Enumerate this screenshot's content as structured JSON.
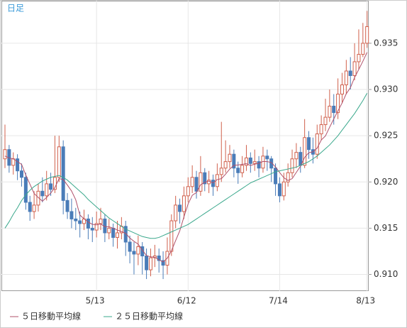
{
  "chart_data": {
    "type": "candlestick",
    "title": "日足",
    "categories": [
      null,
      null,
      null,
      null,
      null,
      null,
      null,
      null,
      null,
      null,
      null,
      null,
      null,
      null,
      null,
      null,
      null,
      null,
      null,
      null,
      null,
      null,
      "5/13",
      null,
      null,
      null,
      null,
      null,
      null,
      null,
      null,
      null,
      null,
      null,
      null,
      null,
      null,
      null,
      null,
      null,
      null,
      null,
      null,
      null,
      "6/12",
      null,
      null,
      null,
      null,
      null,
      null,
      null,
      null,
      null,
      null,
      null,
      null,
      null,
      null,
      null,
      null,
      null,
      null,
      null,
      null,
      null,
      "7/14",
      null,
      null,
      null,
      null,
      null,
      null,
      null,
      null,
      null,
      null,
      null,
      null,
      null,
      null,
      null,
      null,
      null,
      null,
      null,
      null,
      "8/13"
    ],
    "candles": {
      "open": [
        0.9225,
        0.9235,
        0.9218,
        0.9225,
        0.9212,
        0.9205,
        0.9178,
        0.9168,
        0.9175,
        0.919,
        0.9185,
        0.9198,
        0.9192,
        0.9205,
        0.9238,
        0.918,
        0.9168,
        0.916,
        0.9158,
        0.9155,
        0.916,
        0.915,
        0.9148,
        0.9155,
        0.916,
        0.9145,
        0.915,
        0.914,
        0.9145,
        0.9152,
        0.9135,
        0.9125,
        0.9122,
        0.913,
        0.912,
        0.9105,
        0.9118,
        0.912,
        0.9115,
        0.911,
        0.9125,
        0.9158,
        0.9175,
        0.9168,
        0.9185,
        0.9195,
        0.9205,
        0.919,
        0.921,
        0.9198,
        0.9202,
        0.9195,
        0.9208,
        0.9215,
        0.9222,
        0.923,
        0.9215,
        0.921,
        0.9218,
        0.9226,
        0.922,
        0.9222,
        0.9215,
        0.9228,
        0.9225,
        0.9215,
        0.9198,
        0.9185,
        0.92,
        0.921,
        0.9225,
        0.9232,
        0.9218,
        0.9248,
        0.9235,
        0.923,
        0.9252,
        0.9262,
        0.927,
        0.9282,
        0.9275,
        0.9295,
        0.9305,
        0.932,
        0.9315,
        0.933,
        0.9338,
        0.935
      ],
      "high": [
        0.9262,
        0.924,
        0.9232,
        0.923,
        0.922,
        0.921,
        0.9185,
        0.919,
        0.9198,
        0.9205,
        0.9212,
        0.921,
        0.925,
        0.925,
        0.9245,
        0.9188,
        0.9182,
        0.9172,
        0.9168,
        0.917,
        0.9165,
        0.9162,
        0.9168,
        0.9172,
        0.9165,
        0.916,
        0.9155,
        0.9158,
        0.9162,
        0.9158,
        0.9142,
        0.9135,
        0.9142,
        0.9135,
        0.9128,
        0.9128,
        0.9132,
        0.9128,
        0.9125,
        0.914,
        0.9165,
        0.9185,
        0.9182,
        0.9195,
        0.9205,
        0.9218,
        0.9212,
        0.9228,
        0.9215,
        0.9212,
        0.9208,
        0.922,
        0.9265,
        0.9245,
        0.924,
        0.9235,
        0.9222,
        0.9228,
        0.924,
        0.9232,
        0.9235,
        0.9228,
        0.9238,
        0.9235,
        0.9228,
        0.922,
        0.9205,
        0.921,
        0.922,
        0.9235,
        0.9242,
        0.9238,
        0.9268,
        0.9255,
        0.9248,
        0.9262,
        0.9272,
        0.929,
        0.93,
        0.9295,
        0.9312,
        0.9318,
        0.9332,
        0.9335,
        0.935,
        0.9365,
        0.9372,
        0.9385
      ],
      "low": [
        0.9215,
        0.921,
        0.9208,
        0.9202,
        0.9195,
        0.917,
        0.9158,
        0.916,
        0.9168,
        0.9178,
        0.918,
        0.9185,
        0.9188,
        0.92,
        0.9165,
        0.916,
        0.915,
        0.9148,
        0.914,
        0.9148,
        0.9138,
        0.9135,
        0.914,
        0.9148,
        0.9135,
        0.9138,
        0.913,
        0.9128,
        0.9138,
        0.912,
        0.9112,
        0.91,
        0.911,
        0.91,
        0.9095,
        0.9098,
        0.9108,
        0.9102,
        0.9095,
        0.91,
        0.912,
        0.915,
        0.9155,
        0.916,
        0.9178,
        0.9188,
        0.9182,
        0.9185,
        0.919,
        0.9188,
        0.9185,
        0.919,
        0.92,
        0.921,
        0.9215,
        0.9205,
        0.9198,
        0.9205,
        0.9212,
        0.921,
        0.9212,
        0.9205,
        0.921,
        0.9212,
        0.92,
        0.9185,
        0.9178,
        0.918,
        0.9195,
        0.9205,
        0.9215,
        0.921,
        0.9215,
        0.9225,
        0.922,
        0.9225,
        0.9245,
        0.9255,
        0.9265,
        0.9262,
        0.9268,
        0.9285,
        0.9295,
        0.93,
        0.931,
        0.9322,
        0.9335,
        0.9345
      ],
      "close": [
        0.9235,
        0.9218,
        0.9225,
        0.9212,
        0.9205,
        0.9178,
        0.9168,
        0.9175,
        0.919,
        0.9185,
        0.9198,
        0.9192,
        0.9205,
        0.9238,
        0.918,
        0.9168,
        0.916,
        0.9158,
        0.9155,
        0.916,
        0.915,
        0.9148,
        0.9155,
        0.916,
        0.9145,
        0.915,
        0.914,
        0.9145,
        0.9152,
        0.9135,
        0.9125,
        0.9122,
        0.913,
        0.912,
        0.9105,
        0.9118,
        0.912,
        0.9115,
        0.911,
        0.9125,
        0.9158,
        0.9175,
        0.9168,
        0.9185,
        0.9195,
        0.9205,
        0.919,
        0.921,
        0.9198,
        0.9202,
        0.9195,
        0.9208,
        0.9215,
        0.9222,
        0.923,
        0.9215,
        0.921,
        0.9218,
        0.9226,
        0.922,
        0.9222,
        0.9215,
        0.9228,
        0.9225,
        0.9215,
        0.9198,
        0.9185,
        0.92,
        0.921,
        0.9225,
        0.9232,
        0.9218,
        0.9248,
        0.9235,
        0.923,
        0.9252,
        0.9262,
        0.927,
        0.9282,
        0.9275,
        0.9295,
        0.9305,
        0.932,
        0.9315,
        0.933,
        0.9338,
        0.935,
        0.9368
      ]
    },
    "up_color": "#d0604c",
    "down_color": "#4a7cb8",
    "series": [
      {
        "name": "５日移動平均線",
        "color": "#b0506a",
        "values": [
          0.9228,
          0.9226,
          0.9225,
          0.9222,
          0.9219,
          0.92076,
          0.91976,
          0.91876,
          0.91832,
          0.91792,
          0.91832,
          0.9188,
          0.9194,
          0.92036,
          0.92026,
          0.91966,
          0.91902,
          0.91808,
          0.91642,
          0.91602,
          0.91566,
          0.91542,
          0.91536,
          0.91546,
          0.91516,
          0.91516,
          0.915,
          0.9148,
          0.91464,
          0.91444,
          0.91394,
          0.91358,
          0.91328,
          0.91264,
          0.91204,
          0.9119,
          0.91186,
          0.91156,
          0.91136,
          0.91176,
          0.91256,
          0.91366,
          0.91472,
          0.91622,
          0.91762,
          0.91856,
          0.91886,
          0.9197,
          0.91996,
          0.9201,
          0.9199,
          0.92026,
          0.92036,
          0.92084,
          0.9214,
          0.9218,
          0.92184,
          0.9219,
          0.92198,
          0.92178,
          0.92192,
          0.92202,
          0.92222,
          0.9222,
          0.9221,
          0.92162,
          0.92102,
          0.92046,
          0.92016,
          0.92036,
          0.92104,
          0.9217,
          0.92266,
          0.92316,
          0.92326,
          0.92366,
          0.92454,
          0.92498,
          0.92592,
          0.92682,
          0.92768,
          0.92854,
          0.92954,
          0.9302,
          0.9313,
          0.93216,
          0.93306,
          0.93402
        ]
      },
      {
        "name": "２５日移動平均線",
        "color": "#3aa88c",
        "values": [
          0.915,
          0.9157,
          0.9165,
          0.9172,
          0.918,
          0.9186,
          0.9191,
          0.9195,
          0.9198,
          0.9201,
          0.9203,
          0.9205,
          0.9206,
          0.9207,
          0.9205,
          0.9202,
          0.9198,
          0.9194,
          0.919,
          0.9186,
          0.9181,
          0.9177,
          0.9173,
          0.9169,
          0.9165,
          0.9161,
          0.9158,
          0.9155,
          0.9152,
          0.9149,
          0.9147,
          0.9145,
          0.9143,
          0.9141,
          0.914,
          0.9139,
          0.9139,
          0.914,
          0.9142,
          0.9144,
          0.9146,
          0.9148,
          0.915,
          0.9152,
          0.9154,
          0.9157,
          0.916,
          0.9163,
          0.9166,
          0.9169,
          0.9172,
          0.9175,
          0.9178,
          0.9181,
          0.9184,
          0.9187,
          0.919,
          0.9193,
          0.9196,
          0.9199,
          0.9201,
          0.9203,
          0.9205,
          0.9207,
          0.9209,
          0.9211,
          0.9212,
          0.9213,
          0.9214,
          0.9215,
          0.9216,
          0.9218,
          0.922,
          0.9222,
          0.9225,
          0.9228,
          0.9232,
          0.9236,
          0.924,
          0.9245,
          0.925,
          0.9256,
          0.9262,
          0.9268,
          0.9274,
          0.9281,
          0.9288,
          0.9296
        ]
      }
    ],
    "ylim": [
      0.9082,
      0.9396
    ],
    "yticks": [
      {
        "value": 0.91,
        "label": "0.910"
      },
      {
        "value": 0.915,
        "label": "0.915"
      },
      {
        "value": 0.92,
        "label": "0.920"
      },
      {
        "value": 0.925,
        "label": "0.925"
      },
      {
        "value": 0.93,
        "label": "0.930"
      },
      {
        "value": 0.935,
        "label": "0.935"
      }
    ],
    "grid": true
  }
}
